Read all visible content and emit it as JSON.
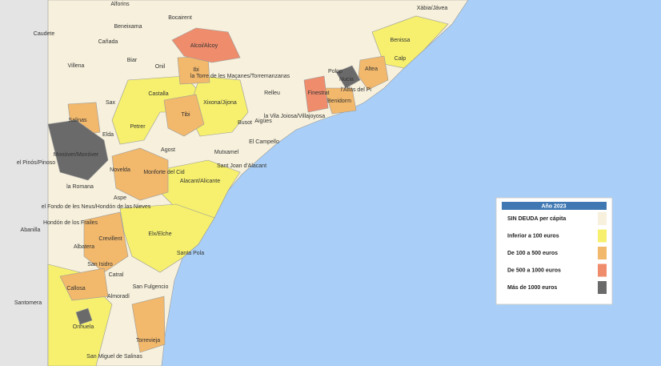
{
  "legend": {
    "title": "Año 2023",
    "items": [
      {
        "label": "SIN DEUDA per cápita",
        "color": "#f6f0dc"
      },
      {
        "label": "Inferior a 100 euros",
        "color": "#f6f06e"
      },
      {
        "label": "De 100 a 500 euros",
        "color": "#f2b86c"
      },
      {
        "label": "De 500 a 1000 euros",
        "color": "#ef8c6c"
      },
      {
        "label": "Más de 1000 euros",
        "color": "#6a6a6a"
      }
    ]
  },
  "places": [
    "Alforins",
    "Bocairent",
    "Caudete",
    "Beneixama",
    "Cañada",
    "Biar",
    "Villena",
    "Onil",
    "Ibi",
    "Alcoi/Alcoy",
    "Castalla",
    "Sax",
    "Tibi",
    "Xixona/Jijona",
    "Salinas",
    "Petrer",
    "Elda",
    "Monóver/Monòver",
    "el Pinós/Pinoso",
    "Agost",
    "Novelda",
    "Monforte del Cid",
    "la Romana",
    "Aspe",
    "el Fondo de les Neus/Hondón de las Nieves",
    "Hondón de los Frailes",
    "Abanilla",
    "Albatera",
    "Crevillent",
    "Elx/Elche",
    "Santa Pola",
    "San Isidro",
    "Catral",
    "Callosa",
    "Santomera",
    "Almoradí",
    "San Fulgencio",
    "Orihuela",
    "Torrevieja",
    "San Miguel de Salinas",
    "Alacant/Alicante",
    "Sant Joan d'Alacant",
    "Mutxamel",
    "El Campello",
    "Busot",
    "Aigües",
    "Relleu",
    "la Torre de les Maçanes/Torremanzanas",
    "la Vila Joiosa/Villajoyosa",
    "Finestrat",
    "Benidorm",
    "l'Alfàs del Pi",
    "Polop",
    "Nucia",
    "Altea",
    "Calp",
    "Benissa",
    "Xàbia/Jávea"
  ]
}
